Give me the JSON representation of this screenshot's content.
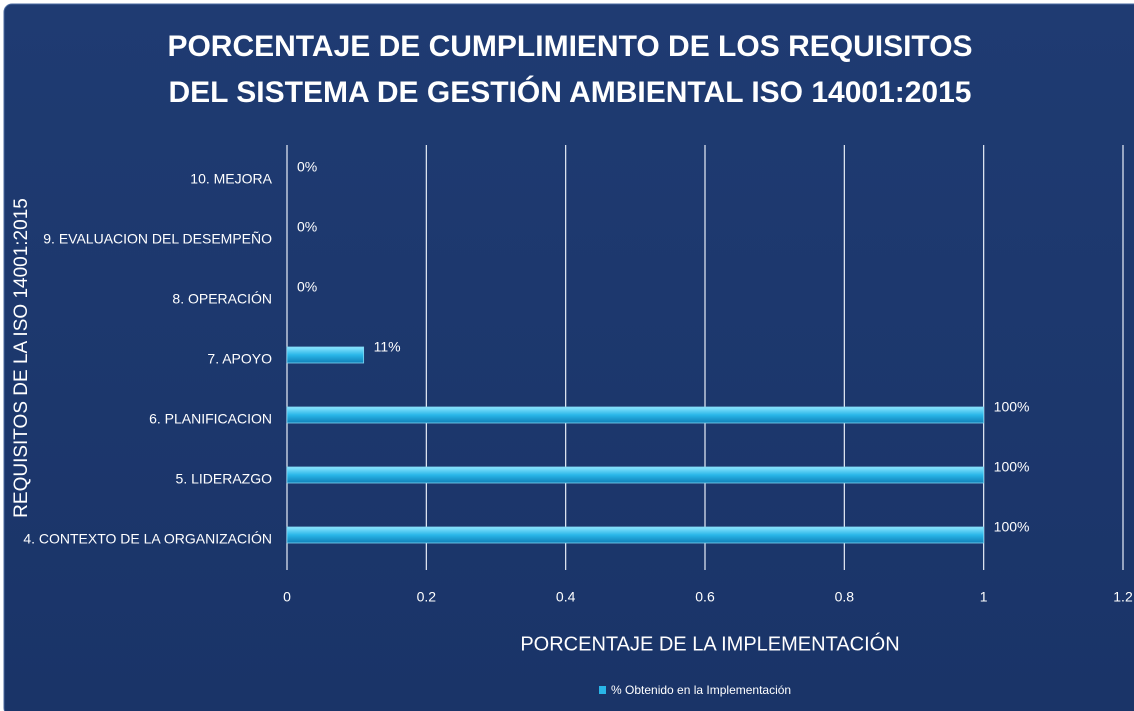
{
  "chart_data": {
    "type": "hbar",
    "title": "PORCENTAJE DE CUMPLIMIENTO DE LOS REQUISITOS DEL SISTEMA DE GESTIÓN AMBIENTAL ISO 14001:2015",
    "x_label": "PORCENTAJE DE LA IMPLEMENTACIÓN",
    "y_label": "REQUISITOS DE LA ISO 14001:2015",
    "categories": [
      "4. CONTEXTO DE LA ORGANIZACIÓN",
      "5. LIDERAZGO",
      "6. PLANIFICACION",
      "7. APOYO",
      "8. OPERACIÓN",
      "9. EVALUACION DEL DESEMPEÑO",
      "10. MEJORA"
    ],
    "series": [
      {
        "name": "% Obtenido en la Implementación",
        "color": "#29b6e8",
        "values": [
          1,
          1,
          1,
          0.11,
          0,
          0,
          0
        ],
        "value_labels": [
          "100%",
          "100%",
          "100%",
          "11%",
          "0%",
          "0%",
          "0%"
        ]
      }
    ],
    "xlim": [
      0,
      1.2
    ],
    "xticks": [
      0,
      0.2,
      0.4,
      0.6,
      0.8,
      1,
      1.2
    ],
    "grid": true,
    "legend": "bottom"
  }
}
